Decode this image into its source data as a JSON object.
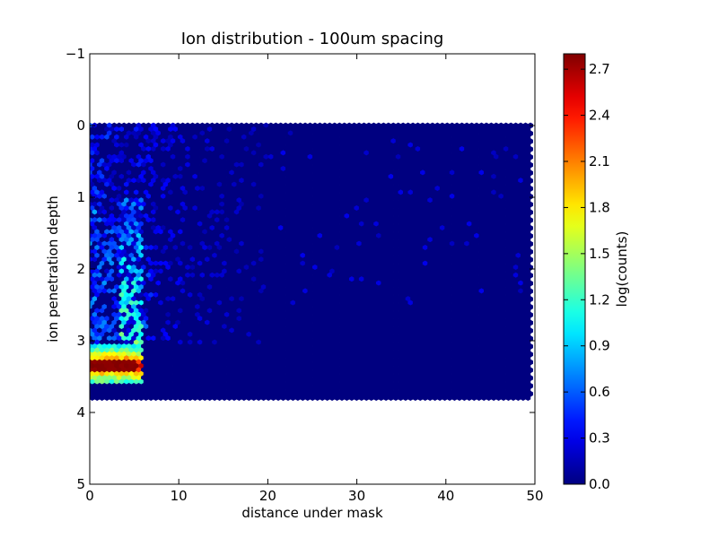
{
  "chart_data": {
    "type": "heatmap",
    "subtype": "hexbin",
    "title": "Ion distribution - 100um spacing",
    "xlabel": "distance under mask",
    "ylabel": "ion penetration depth",
    "xlim": [
      0,
      50
    ],
    "ylim": [
      5,
      -1
    ],
    "y_inverted": true,
    "x_ticks": [
      0,
      10,
      20,
      30,
      40,
      50
    ],
    "y_ticks": [
      -1,
      0,
      1,
      2,
      3,
      4,
      5
    ],
    "data_extent": {
      "x": [
        0,
        49.5
      ],
      "y": [
        0,
        3.8
      ]
    },
    "colorbar": {
      "label": "log(counts)",
      "range": [
        0,
        2.8
      ],
      "ticks": [
        "0.0",
        "0.3",
        "0.6",
        "0.9",
        "1.2",
        "1.5",
        "1.8",
        "2.1",
        "2.4",
        "2.7"
      ],
      "colormap": "jet"
    },
    "features": [
      {
        "region": "peak band",
        "x": [
          0,
          5.3
        ],
        "y": [
          3.27,
          3.43
        ],
        "log_counts": 2.8
      },
      {
        "region": "peak shoulder",
        "x": [
          0,
          5.8
        ],
        "y": [
          3.05,
          3.6
        ],
        "log_counts": 1.6
      },
      {
        "region": "vertical streak",
        "x": [
          3.5,
          6.0
        ],
        "y": [
          1.0,
          3.1
        ],
        "log_counts": 0.8
      },
      {
        "region": "scattered near mask",
        "x": [
          0,
          20
        ],
        "y": [
          0,
          3.0
        ],
        "log_counts": 0.35
      },
      {
        "region": "background",
        "x": [
          0,
          49.5
        ],
        "y": [
          0,
          3.8
        ],
        "log_counts": 0.0
      }
    ]
  }
}
